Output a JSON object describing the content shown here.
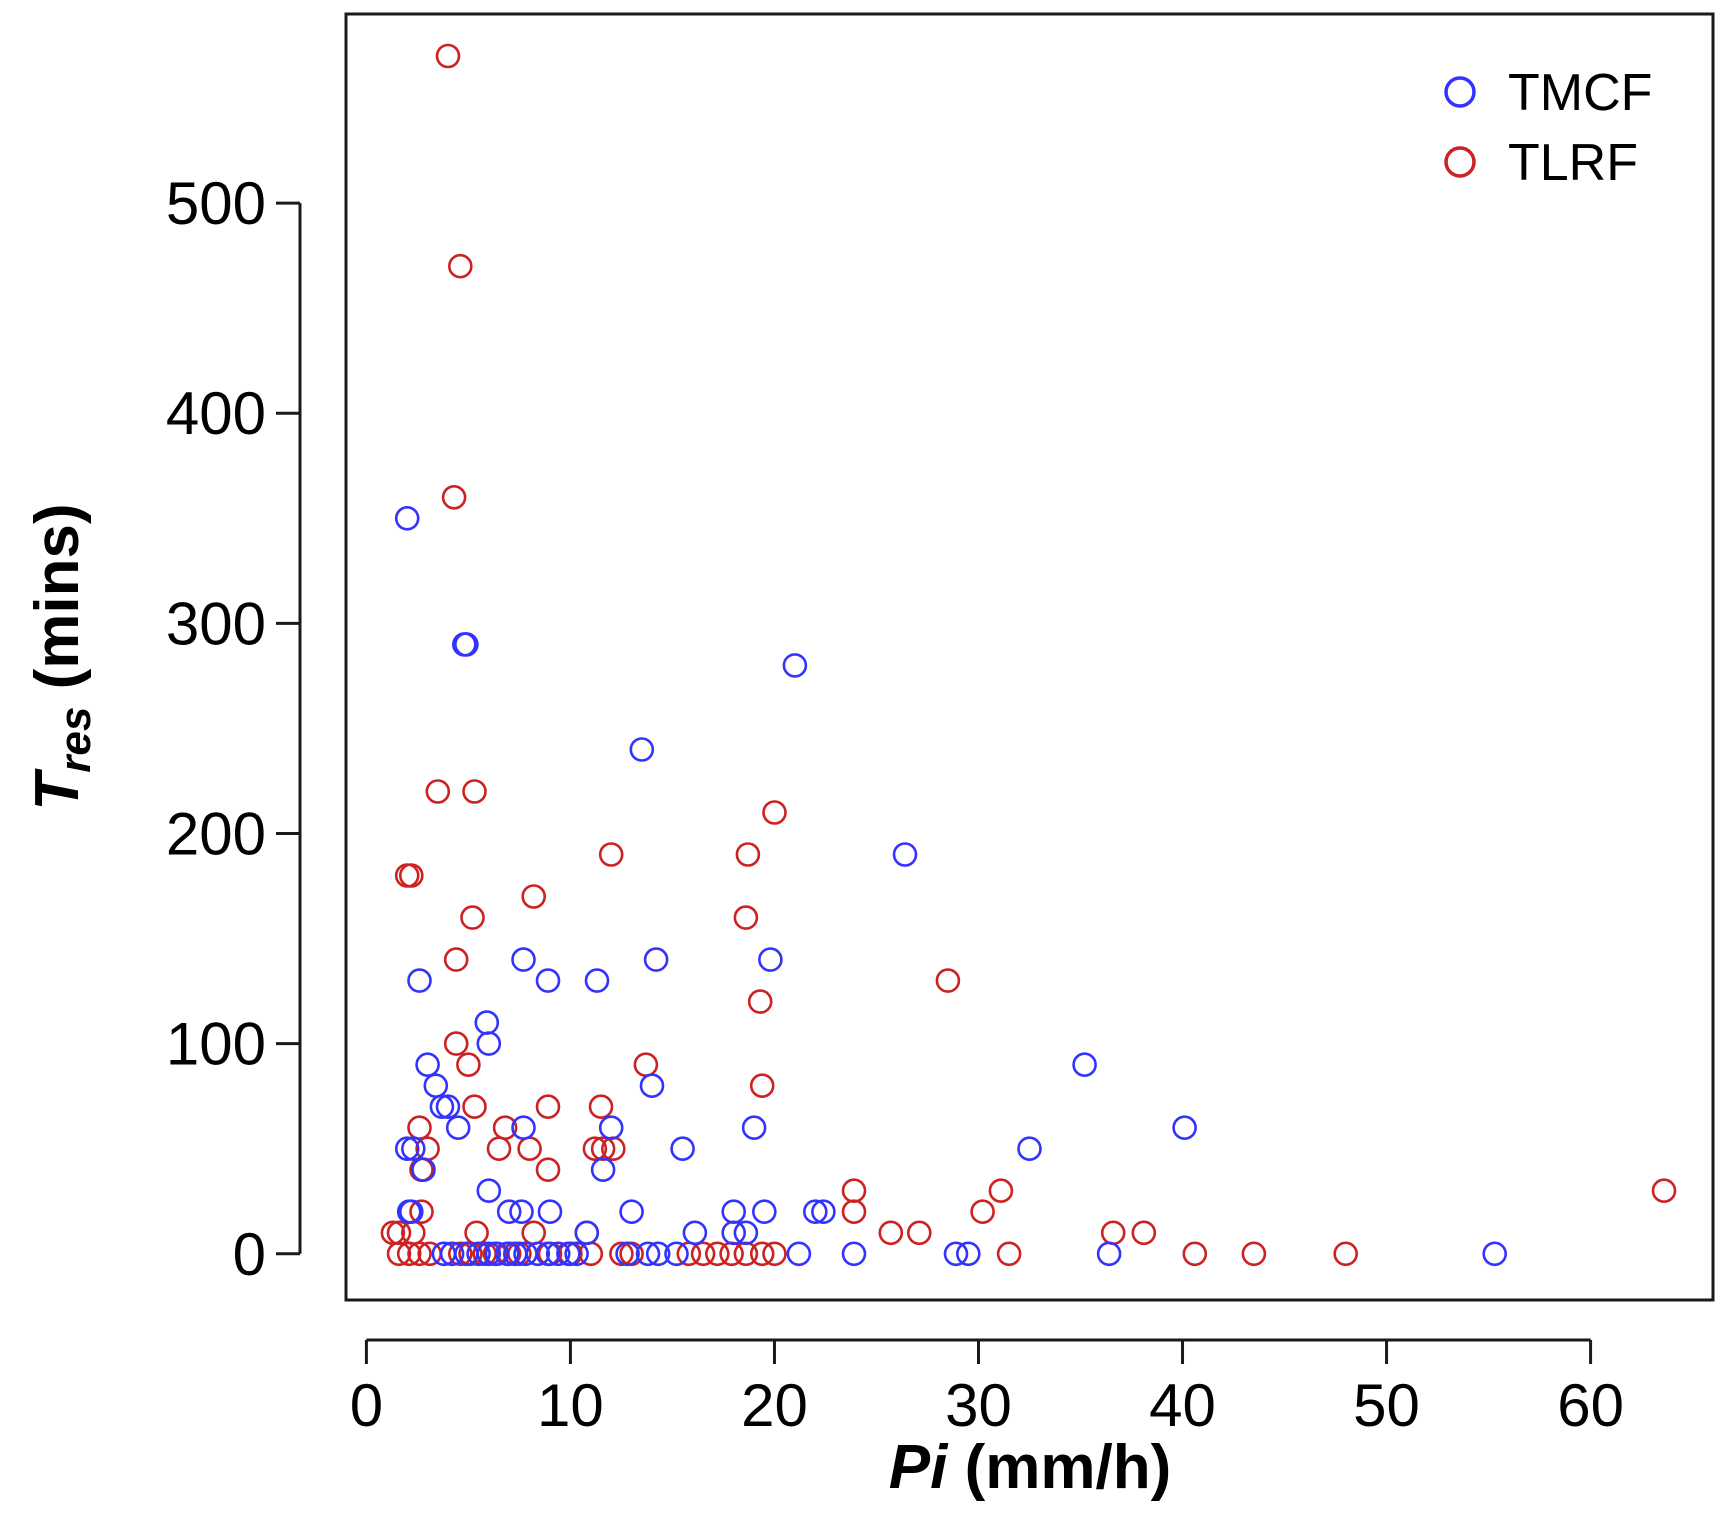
{
  "chart_data": {
    "type": "scatter",
    "title": "",
    "xlabel": {
      "italic": "Pi",
      "rest": " (mm/h)"
    },
    "ylabel": {
      "italic": "T",
      "subscript": "res",
      "rest": " (mins)"
    },
    "xlim": [
      -1,
      66
    ],
    "ylim": [
      -22,
      590
    ],
    "xticks": [
      0,
      10,
      20,
      30,
      40,
      50,
      60
    ],
    "yticks": [
      0,
      100,
      200,
      300,
      400,
      500
    ],
    "legend_position": "top-right",
    "series": [
      {
        "name": "TMCF",
        "color": "#3333ff",
        "points": [
          [
            2.0,
            350
          ],
          [
            4.8,
            290
          ],
          [
            4.9,
            290
          ],
          [
            21.0,
            280
          ],
          [
            13.5,
            240
          ],
          [
            26.4,
            190
          ],
          [
            7.7,
            140
          ],
          [
            14.2,
            140
          ],
          [
            19.8,
            140
          ],
          [
            2.6,
            130
          ],
          [
            8.9,
            130
          ],
          [
            11.3,
            130
          ],
          [
            5.9,
            110
          ],
          [
            6.0,
            100
          ],
          [
            35.2,
            90
          ],
          [
            3.0,
            90
          ],
          [
            3.4,
            80
          ],
          [
            14.0,
            80
          ],
          [
            4.0,
            70
          ],
          [
            3.7,
            70
          ],
          [
            4.5,
            60
          ],
          [
            7.7,
            60
          ],
          [
            12.0,
            60
          ],
          [
            19.0,
            60
          ],
          [
            40.1,
            60
          ],
          [
            2.0,
            50
          ],
          [
            2.3,
            50
          ],
          [
            15.5,
            50
          ],
          [
            32.5,
            50
          ],
          [
            2.8,
            40
          ],
          [
            11.6,
            40
          ],
          [
            6.0,
            30
          ],
          [
            7.0,
            20
          ],
          [
            7.6,
            20
          ],
          [
            9.0,
            20
          ],
          [
            13.0,
            20
          ],
          [
            18.0,
            20
          ],
          [
            19.5,
            20
          ],
          [
            22.0,
            20
          ],
          [
            22.4,
            20
          ],
          [
            2.1,
            20
          ],
          [
            2.2,
            20
          ],
          [
            16.1,
            10
          ],
          [
            18.0,
            10
          ],
          [
            18.6,
            10
          ],
          [
            10.8,
            10
          ],
          [
            3.8,
            0
          ],
          [
            4.2,
            0
          ],
          [
            4.9,
            0
          ],
          [
            5.5,
            0
          ],
          [
            6.0,
            0
          ],
          [
            6.4,
            0
          ],
          [
            6.9,
            0
          ],
          [
            7.3,
            0
          ],
          [
            7.8,
            0
          ],
          [
            8.4,
            0
          ],
          [
            8.9,
            0
          ],
          [
            9.4,
            0
          ],
          [
            9.9,
            0
          ],
          [
            10.3,
            0
          ],
          [
            12.8,
            0
          ],
          [
            13.8,
            0
          ],
          [
            14.3,
            0
          ],
          [
            15.2,
            0
          ],
          [
            21.2,
            0
          ],
          [
            23.9,
            0
          ],
          [
            28.9,
            0
          ],
          [
            29.5,
            0
          ],
          [
            36.4,
            0
          ],
          [
            55.3,
            0
          ]
        ]
      },
      {
        "name": "TLRF",
        "color": "#cc2222",
        "points": [
          [
            4.0,
            570
          ],
          [
            4.6,
            470
          ],
          [
            4.3,
            360
          ],
          [
            3.5,
            220
          ],
          [
            5.3,
            220
          ],
          [
            20.0,
            210
          ],
          [
            12.0,
            190
          ],
          [
            18.7,
            190
          ],
          [
            2.0,
            180
          ],
          [
            2.2,
            180
          ],
          [
            8.2,
            170
          ],
          [
            5.2,
            160
          ],
          [
            18.6,
            160
          ],
          [
            4.4,
            140
          ],
          [
            28.5,
            130
          ],
          [
            19.3,
            120
          ],
          [
            4.4,
            100
          ],
          [
            13.7,
            90
          ],
          [
            5.0,
            90
          ],
          [
            19.4,
            80
          ],
          [
            5.3,
            70
          ],
          [
            8.9,
            70
          ],
          [
            11.5,
            70
          ],
          [
            2.6,
            60
          ],
          [
            6.8,
            60
          ],
          [
            3.0,
            50
          ],
          [
            6.5,
            50
          ],
          [
            8.0,
            50
          ],
          [
            11.2,
            50
          ],
          [
            11.6,
            50
          ],
          [
            12.1,
            50
          ],
          [
            8.9,
            40
          ],
          [
            2.7,
            40
          ],
          [
            23.9,
            30
          ],
          [
            30.2,
            20
          ],
          [
            31.1,
            30
          ],
          [
            63.6,
            30
          ],
          [
            2.7,
            20
          ],
          [
            23.9,
            20
          ],
          [
            1.3,
            10
          ],
          [
            1.6,
            10
          ],
          [
            2.3,
            10
          ],
          [
            5.4,
            10
          ],
          [
            8.2,
            10
          ],
          [
            10.8,
            10
          ],
          [
            25.7,
            10
          ],
          [
            27.1,
            10
          ],
          [
            36.6,
            10
          ],
          [
            38.1,
            10
          ],
          [
            1.6,
            0
          ],
          [
            2.1,
            0
          ],
          [
            2.6,
            0
          ],
          [
            3.1,
            0
          ],
          [
            4.6,
            0
          ],
          [
            5.1,
            0
          ],
          [
            5.8,
            0
          ],
          [
            6.3,
            0
          ],
          [
            7.0,
            0
          ],
          [
            7.5,
            0
          ],
          [
            9.0,
            0
          ],
          [
            10.0,
            0
          ],
          [
            11.0,
            0
          ],
          [
            12.5,
            0
          ],
          [
            13.0,
            0
          ],
          [
            15.8,
            0
          ],
          [
            16.5,
            0
          ],
          [
            17.2,
            0
          ],
          [
            17.9,
            0
          ],
          [
            18.6,
            0
          ],
          [
            19.4,
            0
          ],
          [
            20.0,
            0
          ],
          [
            31.5,
            0
          ],
          [
            40.6,
            0
          ],
          [
            43.5,
            0
          ],
          [
            48.0,
            0
          ]
        ]
      }
    ]
  }
}
